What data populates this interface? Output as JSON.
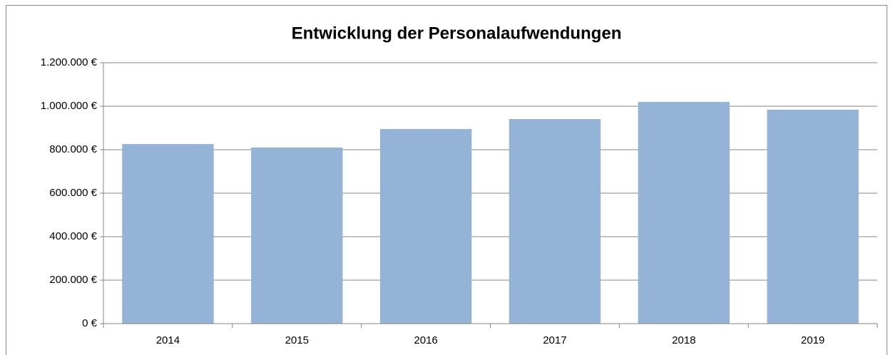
{
  "chart_data": {
    "type": "bar",
    "title": "Entwicklung der Personalaufwendungen",
    "categories": [
      "2014",
      "2015",
      "2016",
      "2017",
      "2018",
      "2019"
    ],
    "values": [
      826000,
      810000,
      895000,
      941000,
      1020000,
      984000
    ],
    "color": "#95b3d7",
    "ylim": [
      0,
      1200000
    ],
    "yticks": [
      {
        "value": 0,
        "label": "0 €"
      },
      {
        "value": 200000,
        "label": "200.000 €"
      },
      {
        "value": 400000,
        "label": "400.000 €"
      },
      {
        "value": 600000,
        "label": "600.000 €"
      },
      {
        "value": 800000,
        "label": "800.000 €"
      },
      {
        "value": 1000000,
        "label": "1.000.000 €"
      },
      {
        "value": 1200000,
        "label": "1.200.000 €"
      }
    ],
    "grid": true
  }
}
